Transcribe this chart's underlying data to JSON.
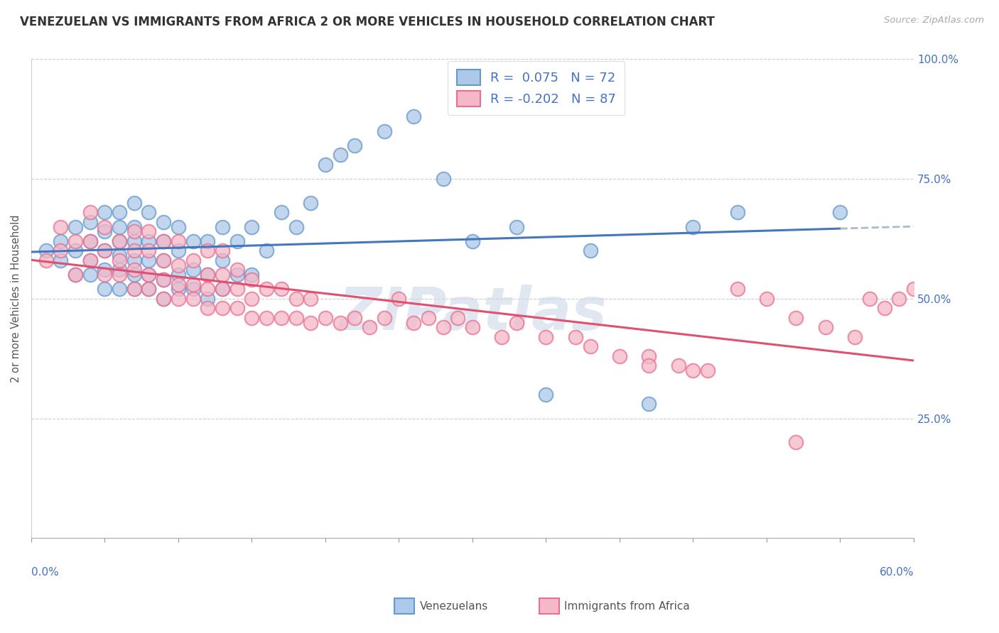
{
  "title": "VENEZUELAN VS IMMIGRANTS FROM AFRICA 2 OR MORE VEHICLES IN HOUSEHOLD CORRELATION CHART",
  "source": "Source: ZipAtlas.com",
  "ylabel": "2 or more Vehicles in Household",
  "R1": 0.075,
  "N1": 72,
  "R2": -0.202,
  "N2": 87,
  "color1": "#adc8e8",
  "color2": "#f5b8c8",
  "edge_color1": "#6699cc",
  "edge_color2": "#e87090",
  "line_color1": "#4477bb",
  "line_color2": "#e05070",
  "watermark": "ZIPatlas",
  "watermark_color": "#ccd8e8",
  "xmin": 0.0,
  "xmax": 0.6,
  "ymin": 0.0,
  "ymax": 1.0,
  "venezuelan_x": [
    0.01,
    0.02,
    0.02,
    0.03,
    0.03,
    0.03,
    0.04,
    0.04,
    0.04,
    0.04,
    0.05,
    0.05,
    0.05,
    0.05,
    0.05,
    0.06,
    0.06,
    0.06,
    0.06,
    0.06,
    0.06,
    0.07,
    0.07,
    0.07,
    0.07,
    0.07,
    0.07,
    0.08,
    0.08,
    0.08,
    0.08,
    0.08,
    0.09,
    0.09,
    0.09,
    0.09,
    0.09,
    0.1,
    0.1,
    0.1,
    0.1,
    0.11,
    0.11,
    0.11,
    0.12,
    0.12,
    0.12,
    0.13,
    0.13,
    0.13,
    0.14,
    0.14,
    0.15,
    0.15,
    0.16,
    0.17,
    0.18,
    0.19,
    0.2,
    0.21,
    0.22,
    0.24,
    0.26,
    0.28,
    0.3,
    0.33,
    0.35,
    0.38,
    0.42,
    0.45,
    0.48,
    0.55
  ],
  "venezuelan_y": [
    0.6,
    0.58,
    0.62,
    0.55,
    0.6,
    0.65,
    0.55,
    0.58,
    0.62,
    0.66,
    0.52,
    0.56,
    0.6,
    0.64,
    0.68,
    0.52,
    0.56,
    0.59,
    0.62,
    0.65,
    0.68,
    0.52,
    0.55,
    0.58,
    0.62,
    0.65,
    0.7,
    0.52,
    0.55,
    0.58,
    0.62,
    0.68,
    0.5,
    0.54,
    0.58,
    0.62,
    0.66,
    0.52,
    0.55,
    0.6,
    0.65,
    0.52,
    0.56,
    0.62,
    0.5,
    0.55,
    0.62,
    0.52,
    0.58,
    0.65,
    0.55,
    0.62,
    0.55,
    0.65,
    0.6,
    0.68,
    0.65,
    0.7,
    0.78,
    0.8,
    0.82,
    0.85,
    0.88,
    0.75,
    0.62,
    0.65,
    0.3,
    0.6,
    0.28,
    0.65,
    0.68,
    0.68
  ],
  "africa_x": [
    0.01,
    0.02,
    0.02,
    0.03,
    0.03,
    0.04,
    0.04,
    0.04,
    0.05,
    0.05,
    0.05,
    0.06,
    0.06,
    0.06,
    0.07,
    0.07,
    0.07,
    0.07,
    0.08,
    0.08,
    0.08,
    0.08,
    0.09,
    0.09,
    0.09,
    0.09,
    0.1,
    0.1,
    0.1,
    0.1,
    0.11,
    0.11,
    0.11,
    0.12,
    0.12,
    0.12,
    0.12,
    0.13,
    0.13,
    0.13,
    0.13,
    0.14,
    0.14,
    0.14,
    0.15,
    0.15,
    0.15,
    0.16,
    0.16,
    0.17,
    0.17,
    0.18,
    0.18,
    0.19,
    0.19,
    0.2,
    0.21,
    0.22,
    0.23,
    0.24,
    0.25,
    0.26,
    0.27,
    0.28,
    0.29,
    0.3,
    0.32,
    0.33,
    0.35,
    0.37,
    0.38,
    0.4,
    0.42,
    0.44,
    0.46,
    0.48,
    0.5,
    0.52,
    0.54,
    0.56,
    0.57,
    0.58,
    0.59,
    0.6,
    0.42,
    0.45,
    0.52
  ],
  "africa_y": [
    0.58,
    0.6,
    0.65,
    0.55,
    0.62,
    0.58,
    0.62,
    0.68,
    0.55,
    0.6,
    0.65,
    0.55,
    0.58,
    0.62,
    0.52,
    0.56,
    0.6,
    0.64,
    0.52,
    0.55,
    0.6,
    0.64,
    0.5,
    0.54,
    0.58,
    0.62,
    0.5,
    0.53,
    0.57,
    0.62,
    0.5,
    0.53,
    0.58,
    0.48,
    0.52,
    0.55,
    0.6,
    0.48,
    0.52,
    0.55,
    0.6,
    0.48,
    0.52,
    0.56,
    0.46,
    0.5,
    0.54,
    0.46,
    0.52,
    0.46,
    0.52,
    0.46,
    0.5,
    0.45,
    0.5,
    0.46,
    0.45,
    0.46,
    0.44,
    0.46,
    0.5,
    0.45,
    0.46,
    0.44,
    0.46,
    0.44,
    0.42,
    0.45,
    0.42,
    0.42,
    0.4,
    0.38,
    0.38,
    0.36,
    0.35,
    0.52,
    0.5,
    0.46,
    0.44,
    0.42,
    0.5,
    0.48,
    0.5,
    0.52,
    0.36,
    0.35,
    0.2
  ]
}
